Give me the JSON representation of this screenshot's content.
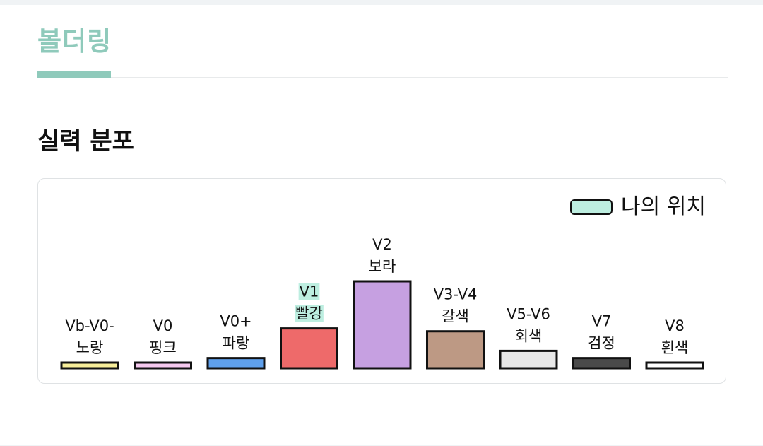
{
  "tab": {
    "title": "볼더링"
  },
  "section": {
    "title": "실력 분포"
  },
  "legend": {
    "label": "나의 위치",
    "color": "#bdeee0"
  },
  "chart_data": {
    "type": "bar",
    "title": "",
    "xlabel": "",
    "ylabel": "",
    "categories": [
      {
        "grade": "Vb-V0-",
        "color_name": "노랑"
      },
      {
        "grade": "V0",
        "color_name": "핑크"
      },
      {
        "grade": "V0+",
        "color_name": "파랑"
      },
      {
        "grade": "V1",
        "color_name": "빨강"
      },
      {
        "grade": "V2",
        "color_name": "보라"
      },
      {
        "grade": "V3-V4",
        "color_name": "갈색"
      },
      {
        "grade": "V5-V6",
        "color_name": "회색"
      },
      {
        "grade": "V7",
        "color_name": "검정"
      },
      {
        "grade": "V8",
        "color_name": "흰색"
      }
    ],
    "values": [
      6,
      6,
      14,
      55,
      120,
      51,
      24,
      14,
      6
    ],
    "bar_colors": [
      "#f7ee9a",
      "#f6c9ef",
      "#5fa0ec",
      "#ee6a6a",
      "#c6a0e1",
      "#bd9984",
      "#e8e8e8",
      "#4a4a4a",
      "#ffffff"
    ],
    "highlight_index": 3,
    "ylim": [
      0,
      120
    ],
    "grid": false,
    "legend_position": "top-right"
  }
}
